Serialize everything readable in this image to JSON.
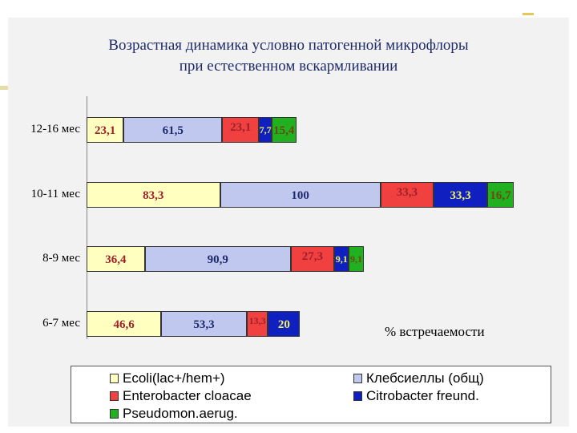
{
  "chart_data": {
    "type": "bar",
    "stacked": true,
    "orientation": "horizontal",
    "title": [
      "Возрастная динамика условно патогенной микрофлоры",
      "при естественном вскармливании"
    ],
    "categories": [
      "12-16 мес",
      "10-11 мес",
      "8-9 мес",
      "6-7 мес"
    ],
    "series": [
      {
        "name": "Ecoli(lac+/hem+)",
        "color": "#ffffc0",
        "label_color": "#a0202a",
        "values": [
          23.1,
          83.3,
          36.4,
          46.6
        ],
        "labels": [
          "23,1",
          "83,3",
          "36,4",
          "46,6"
        ]
      },
      {
        "name": "Клебсиеллы (общ)",
        "color": "#c0c8f0",
        "label_color": "#1f2a6b",
        "values": [
          61.5,
          100,
          90.9,
          53.3
        ],
        "labels": [
          "61,5",
          "100",
          "90,9",
          "53,3"
        ]
      },
      {
        "name": "Enterobacter cloacae",
        "color": "#f04040",
        "label_color": "#a0202a",
        "values": [
          23.1,
          33.3,
          27.3,
          13.3
        ],
        "labels": [
          "23,1",
          "33,3",
          "27,3",
          "13,3"
        ]
      },
      {
        "name": "Citrobacter freund.",
        "color": "#1020c0",
        "label_color": "#f0f060",
        "values": [
          7.7,
          33.3,
          9.1,
          20
        ],
        "labels": [
          "7,7",
          "33,3",
          "9,1",
          "20"
        ]
      },
      {
        "name": "Pseudomon.aerug.",
        "color": "#20b020",
        "label_color": "#6b4a10",
        "values": [
          15.4,
          16.7,
          9.1,
          0
        ],
        "labels": [
          "15,4",
          "16,7",
          "9,1",
          ""
        ]
      }
    ],
    "xlim": [
      0,
      266.6
    ],
    "note": "% встречаемости",
    "legend_placement": "bottom",
    "grid": false
  },
  "legend": {
    "items": [
      {
        "label": "Ecoli(lac+/hem+)",
        "color": "#ffffc0"
      },
      {
        "label": "Клебсиеллы (общ)",
        "color": "#c0c8f0"
      },
      {
        "label": "Enterobacter cloacae",
        "color": "#f04040"
      },
      {
        "label": "Citrobacter freund.",
        "color": "#1020c0"
      },
      {
        "label": "Pseudomon.aerug.",
        "color": "#20b020"
      }
    ]
  }
}
